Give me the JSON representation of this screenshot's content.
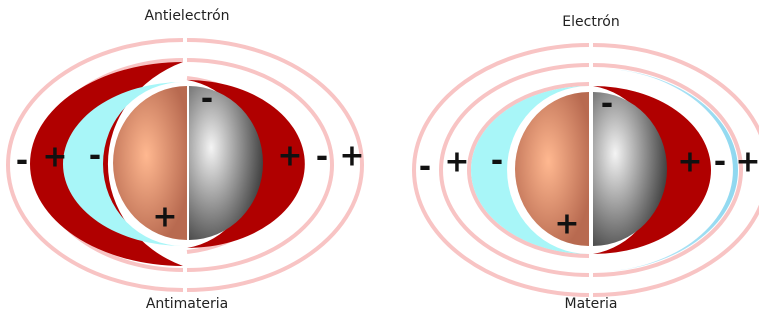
{
  "diagrams": [
    {
      "title": "Antielectrón",
      "caption": "Antimateria",
      "signs": [
        "-",
        "+",
        "-",
        "-",
        "+",
        "-",
        "+",
        "+"
      ]
    },
    {
      "title": "Electrón",
      "caption": "Materia",
      "signs": [
        "-",
        "+",
        "-",
        "-",
        "+",
        "-",
        "+",
        "+"
      ]
    }
  ]
}
